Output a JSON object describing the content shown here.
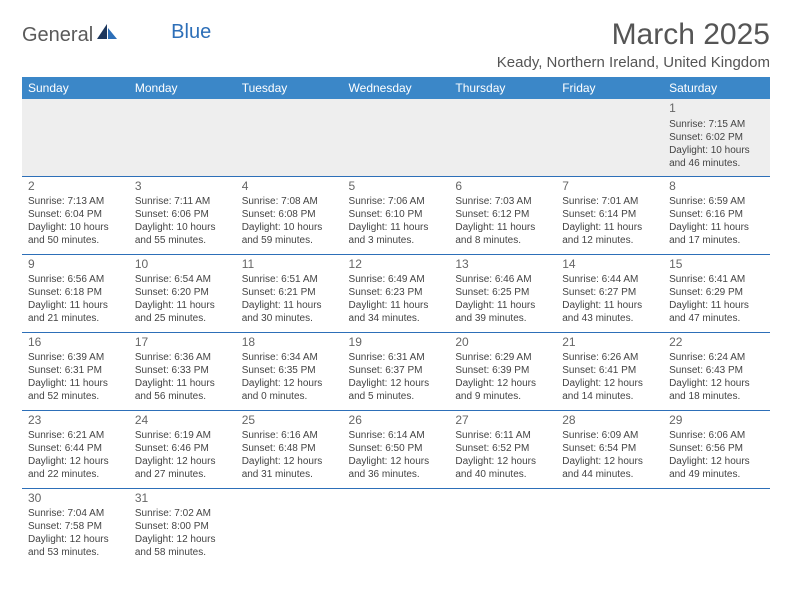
{
  "logo": {
    "part1": "General",
    "part2": "Blue"
  },
  "title": "March 2025",
  "location": "Keady, Northern Ireland, United Kingdom",
  "colors": {
    "header_bg": "#3b87c8",
    "header_text": "#ffffff",
    "row_border": "#2d6fb8",
    "blank_bg": "#eeeeee",
    "text": "#444444",
    "title_text": "#555555",
    "logo_gray": "#5a5a5a",
    "logo_blue": "#2d6fb8"
  },
  "typography": {
    "title_fontsize": 30,
    "location_fontsize": 15,
    "header_fontsize": 12,
    "daynum_fontsize": 12,
    "cell_fontsize": 10
  },
  "weekdays": [
    "Sunday",
    "Monday",
    "Tuesday",
    "Wednesday",
    "Thursday",
    "Friday",
    "Saturday"
  ],
  "weeks": [
    [
      null,
      null,
      null,
      null,
      null,
      null,
      {
        "day": "1",
        "sunrise": "Sunrise: 7:15 AM",
        "sunset": "Sunset: 6:02 PM",
        "daylight1": "Daylight: 10 hours",
        "daylight2": "and 46 minutes."
      }
    ],
    [
      {
        "day": "2",
        "sunrise": "Sunrise: 7:13 AM",
        "sunset": "Sunset: 6:04 PM",
        "daylight1": "Daylight: 10 hours",
        "daylight2": "and 50 minutes."
      },
      {
        "day": "3",
        "sunrise": "Sunrise: 7:11 AM",
        "sunset": "Sunset: 6:06 PM",
        "daylight1": "Daylight: 10 hours",
        "daylight2": "and 55 minutes."
      },
      {
        "day": "4",
        "sunrise": "Sunrise: 7:08 AM",
        "sunset": "Sunset: 6:08 PM",
        "daylight1": "Daylight: 10 hours",
        "daylight2": "and 59 minutes."
      },
      {
        "day": "5",
        "sunrise": "Sunrise: 7:06 AM",
        "sunset": "Sunset: 6:10 PM",
        "daylight1": "Daylight: 11 hours",
        "daylight2": "and 3 minutes."
      },
      {
        "day": "6",
        "sunrise": "Sunrise: 7:03 AM",
        "sunset": "Sunset: 6:12 PM",
        "daylight1": "Daylight: 11 hours",
        "daylight2": "and 8 minutes."
      },
      {
        "day": "7",
        "sunrise": "Sunrise: 7:01 AM",
        "sunset": "Sunset: 6:14 PM",
        "daylight1": "Daylight: 11 hours",
        "daylight2": "and 12 minutes."
      },
      {
        "day": "8",
        "sunrise": "Sunrise: 6:59 AM",
        "sunset": "Sunset: 6:16 PM",
        "daylight1": "Daylight: 11 hours",
        "daylight2": "and 17 minutes."
      }
    ],
    [
      {
        "day": "9",
        "sunrise": "Sunrise: 6:56 AM",
        "sunset": "Sunset: 6:18 PM",
        "daylight1": "Daylight: 11 hours",
        "daylight2": "and 21 minutes."
      },
      {
        "day": "10",
        "sunrise": "Sunrise: 6:54 AM",
        "sunset": "Sunset: 6:20 PM",
        "daylight1": "Daylight: 11 hours",
        "daylight2": "and 25 minutes."
      },
      {
        "day": "11",
        "sunrise": "Sunrise: 6:51 AM",
        "sunset": "Sunset: 6:21 PM",
        "daylight1": "Daylight: 11 hours",
        "daylight2": "and 30 minutes."
      },
      {
        "day": "12",
        "sunrise": "Sunrise: 6:49 AM",
        "sunset": "Sunset: 6:23 PM",
        "daylight1": "Daylight: 11 hours",
        "daylight2": "and 34 minutes."
      },
      {
        "day": "13",
        "sunrise": "Sunrise: 6:46 AM",
        "sunset": "Sunset: 6:25 PM",
        "daylight1": "Daylight: 11 hours",
        "daylight2": "and 39 minutes."
      },
      {
        "day": "14",
        "sunrise": "Sunrise: 6:44 AM",
        "sunset": "Sunset: 6:27 PM",
        "daylight1": "Daylight: 11 hours",
        "daylight2": "and 43 minutes."
      },
      {
        "day": "15",
        "sunrise": "Sunrise: 6:41 AM",
        "sunset": "Sunset: 6:29 PM",
        "daylight1": "Daylight: 11 hours",
        "daylight2": "and 47 minutes."
      }
    ],
    [
      {
        "day": "16",
        "sunrise": "Sunrise: 6:39 AM",
        "sunset": "Sunset: 6:31 PM",
        "daylight1": "Daylight: 11 hours",
        "daylight2": "and 52 minutes."
      },
      {
        "day": "17",
        "sunrise": "Sunrise: 6:36 AM",
        "sunset": "Sunset: 6:33 PM",
        "daylight1": "Daylight: 11 hours",
        "daylight2": "and 56 minutes."
      },
      {
        "day": "18",
        "sunrise": "Sunrise: 6:34 AM",
        "sunset": "Sunset: 6:35 PM",
        "daylight1": "Daylight: 12 hours",
        "daylight2": "and 0 minutes."
      },
      {
        "day": "19",
        "sunrise": "Sunrise: 6:31 AM",
        "sunset": "Sunset: 6:37 PM",
        "daylight1": "Daylight: 12 hours",
        "daylight2": "and 5 minutes."
      },
      {
        "day": "20",
        "sunrise": "Sunrise: 6:29 AM",
        "sunset": "Sunset: 6:39 PM",
        "daylight1": "Daylight: 12 hours",
        "daylight2": "and 9 minutes."
      },
      {
        "day": "21",
        "sunrise": "Sunrise: 6:26 AM",
        "sunset": "Sunset: 6:41 PM",
        "daylight1": "Daylight: 12 hours",
        "daylight2": "and 14 minutes."
      },
      {
        "day": "22",
        "sunrise": "Sunrise: 6:24 AM",
        "sunset": "Sunset: 6:43 PM",
        "daylight1": "Daylight: 12 hours",
        "daylight2": "and 18 minutes."
      }
    ],
    [
      {
        "day": "23",
        "sunrise": "Sunrise: 6:21 AM",
        "sunset": "Sunset: 6:44 PM",
        "daylight1": "Daylight: 12 hours",
        "daylight2": "and 22 minutes."
      },
      {
        "day": "24",
        "sunrise": "Sunrise: 6:19 AM",
        "sunset": "Sunset: 6:46 PM",
        "daylight1": "Daylight: 12 hours",
        "daylight2": "and 27 minutes."
      },
      {
        "day": "25",
        "sunrise": "Sunrise: 6:16 AM",
        "sunset": "Sunset: 6:48 PM",
        "daylight1": "Daylight: 12 hours",
        "daylight2": "and 31 minutes."
      },
      {
        "day": "26",
        "sunrise": "Sunrise: 6:14 AM",
        "sunset": "Sunset: 6:50 PM",
        "daylight1": "Daylight: 12 hours",
        "daylight2": "and 36 minutes."
      },
      {
        "day": "27",
        "sunrise": "Sunrise: 6:11 AM",
        "sunset": "Sunset: 6:52 PM",
        "daylight1": "Daylight: 12 hours",
        "daylight2": "and 40 minutes."
      },
      {
        "day": "28",
        "sunrise": "Sunrise: 6:09 AM",
        "sunset": "Sunset: 6:54 PM",
        "daylight1": "Daylight: 12 hours",
        "daylight2": "and 44 minutes."
      },
      {
        "day": "29",
        "sunrise": "Sunrise: 6:06 AM",
        "sunset": "Sunset: 6:56 PM",
        "daylight1": "Daylight: 12 hours",
        "daylight2": "and 49 minutes."
      }
    ],
    [
      {
        "day": "30",
        "sunrise": "Sunrise: 7:04 AM",
        "sunset": "Sunset: 7:58 PM",
        "daylight1": "Daylight: 12 hours",
        "daylight2": "and 53 minutes."
      },
      {
        "day": "31",
        "sunrise": "Sunrise: 7:02 AM",
        "sunset": "Sunset: 8:00 PM",
        "daylight1": "Daylight: 12 hours",
        "daylight2": "and 58 minutes."
      },
      null,
      null,
      null,
      null,
      null
    ]
  ]
}
